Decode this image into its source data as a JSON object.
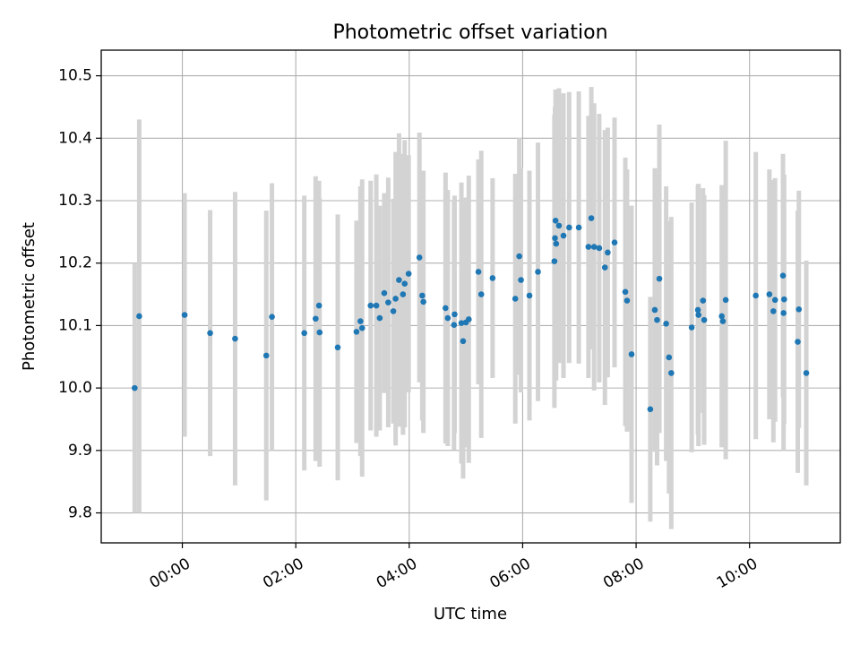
{
  "chart_data": {
    "type": "scatter",
    "title": "Photometric offset variation",
    "xlabel": "UTC time",
    "ylabel": "Photometric offset",
    "x_unit": "hours (UTC)",
    "xlim": [
      -1.43,
      11.6
    ],
    "ylim": [
      9.752,
      10.541
    ],
    "grid": true,
    "x_ticks": [
      {
        "value": 0,
        "label": "00:00"
      },
      {
        "value": 2,
        "label": "02:00"
      },
      {
        "value": 4,
        "label": "04:00"
      },
      {
        "value": 6,
        "label": "06:00"
      },
      {
        "value": 8,
        "label": "08:00"
      },
      {
        "value": 10,
        "label": "10:00"
      }
    ],
    "y_ticks": [
      {
        "value": 9.8,
        "label": "9.8"
      },
      {
        "value": 9.9,
        "label": "9.9"
      },
      {
        "value": 10.0,
        "label": "10.0"
      },
      {
        "value": 10.1,
        "label": "10.1"
      },
      {
        "value": 10.2,
        "label": "10.2"
      },
      {
        "value": 10.3,
        "label": "10.3"
      },
      {
        "value": 10.4,
        "label": "10.4"
      },
      {
        "value": 10.5,
        "label": "10.5"
      }
    ],
    "colors": {
      "points": "#1f77b4",
      "errorbars": "#d3d3d3",
      "grid": "#b0b0b0"
    },
    "series": [
      {
        "points": [
          [
            -0.84,
            10.0,
            0.2
          ],
          [
            -0.76,
            10.115,
            0.315
          ],
          [
            0.04,
            10.117,
            0.195
          ],
          [
            0.49,
            10.088,
            0.197
          ],
          [
            0.93,
            10.079,
            0.235
          ],
          [
            1.48,
            10.052,
            0.232
          ],
          [
            1.58,
            10.114,
            0.214
          ],
          [
            2.15,
            10.088,
            0.22
          ],
          [
            2.35,
            10.111,
            0.228
          ],
          [
            2.41,
            10.132,
            0.2
          ],
          [
            2.42,
            10.089,
            0.215
          ],
          [
            2.74,
            10.065,
            0.213
          ],
          [
            3.07,
            10.09,
            0.178
          ],
          [
            3.14,
            10.107,
            0.216
          ],
          [
            3.17,
            10.096,
            0.238
          ],
          [
            3.32,
            10.132,
            0.2
          ],
          [
            3.42,
            10.132,
            0.21
          ],
          [
            3.48,
            10.112,
            0.18
          ],
          [
            3.56,
            10.152,
            0.16
          ],
          [
            3.63,
            10.137,
            0.2
          ],
          [
            3.72,
            10.123,
            0.18
          ],
          [
            3.76,
            10.143,
            0.235
          ],
          [
            3.82,
            10.173,
            0.235
          ],
          [
            3.89,
            10.15,
            0.225
          ],
          [
            3.92,
            10.167,
            0.23
          ],
          [
            3.99,
            10.183,
            0.19
          ],
          [
            4.18,
            10.209,
            0.2
          ],
          [
            4.23,
            10.148,
            0.2
          ],
          [
            4.25,
            10.138,
            0.21
          ],
          [
            4.64,
            10.128,
            0.217
          ],
          [
            4.68,
            10.112,
            0.205
          ],
          [
            4.79,
            10.101,
            0.2
          ],
          [
            4.8,
            10.118,
            0.19
          ],
          [
            4.92,
            10.104,
            0.225
          ],
          [
            4.95,
            10.075,
            0.22
          ],
          [
            5.0,
            10.105,
            0.2
          ],
          [
            5.05,
            10.11,
            0.23
          ],
          [
            5.22,
            10.186,
            0.18
          ],
          [
            5.27,
            10.15,
            0.23
          ],
          [
            5.47,
            10.176,
            0.16
          ],
          [
            5.87,
            10.143,
            0.2
          ],
          [
            5.94,
            10.211,
            0.19
          ],
          [
            5.97,
            10.173,
            0.18
          ],
          [
            6.12,
            10.148,
            0.2
          ],
          [
            6.27,
            10.186,
            0.207
          ],
          [
            6.56,
            10.203,
            0.235
          ],
          [
            6.57,
            10.24,
            0.21
          ],
          [
            6.58,
            10.268,
            0.21
          ],
          [
            6.59,
            10.231,
            0.219
          ],
          [
            6.64,
            10.26,
            0.22
          ],
          [
            6.72,
            10.244,
            0.228
          ],
          [
            6.82,
            10.257,
            0.217
          ],
          [
            6.99,
            10.257,
            0.218
          ],
          [
            7.16,
            10.226,
            0.21
          ],
          [
            7.21,
            10.272,
            0.21
          ],
          [
            7.26,
            10.226,
            0.23
          ],
          [
            7.35,
            10.224,
            0.215
          ],
          [
            7.45,
            10.193,
            0.22
          ],
          [
            7.5,
            10.217,
            0.2
          ],
          [
            7.62,
            10.233,
            0.2
          ],
          [
            7.81,
            10.154,
            0.215
          ],
          [
            7.84,
            10.14,
            0.21
          ],
          [
            7.92,
            10.054,
            0.238
          ],
          [
            8.25,
            9.966,
            0.18
          ],
          [
            8.33,
            10.125,
            0.227
          ],
          [
            8.37,
            10.109,
            0.233
          ],
          [
            8.41,
            10.175,
            0.247
          ],
          [
            8.53,
            10.103,
            0.22
          ],
          [
            8.58,
            10.049,
            0.218
          ],
          [
            8.62,
            10.024,
            0.25
          ],
          [
            8.98,
            10.097,
            0.2
          ],
          [
            9.09,
            10.125,
            0.2
          ],
          [
            9.1,
            10.117,
            0.21
          ],
          [
            9.18,
            10.14,
            0.18
          ],
          [
            9.2,
            10.109,
            0.2
          ],
          [
            9.51,
            10.115,
            0.21
          ],
          [
            9.53,
            10.107,
            0.2
          ],
          [
            9.58,
            10.141,
            0.255
          ],
          [
            10.11,
            10.148,
            0.23
          ],
          [
            10.35,
            10.15,
            0.2
          ],
          [
            10.42,
            10.123,
            0.21
          ],
          [
            10.45,
            10.141,
            0.195
          ],
          [
            10.59,
            10.18,
            0.195
          ],
          [
            10.6,
            10.12,
            0.22
          ],
          [
            10.61,
            10.142,
            0.2
          ],
          [
            10.85,
            10.074,
            0.21
          ],
          [
            10.87,
            10.126,
            0.19
          ],
          [
            11.0,
            10.024,
            0.18
          ]
        ]
      }
    ]
  }
}
